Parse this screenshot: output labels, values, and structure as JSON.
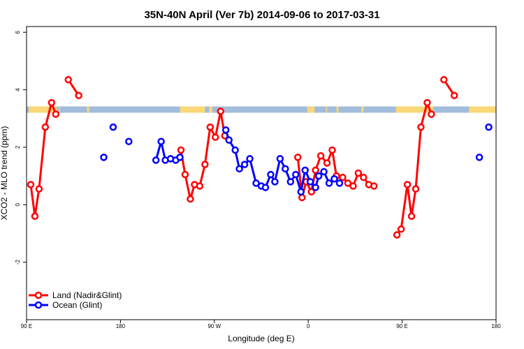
{
  "chart_data": {
    "type": "line",
    "title": "35N-40N April (Ver 7b)   2014-09-06 to 2017-03-31",
    "xlabel": "Longitude (deg E)",
    "ylabel": "XCO2 - MLO trend (ppm)",
    "xlim": [
      90,
      540
    ],
    "ylim": [
      -4,
      6.2
    ],
    "x_ticks": [
      {
        "value": 90,
        "label": "90 E"
      },
      {
        "value": 180,
        "label": "180"
      },
      {
        "value": 270,
        "label": "90 W"
      },
      {
        "value": 360,
        "label": "0"
      },
      {
        "value": 450,
        "label": "90 E"
      },
      {
        "value": 540,
        "label": "180"
      }
    ],
    "y_ticks": [
      {
        "value": -2,
        "label": "-2"
      },
      {
        "value": 0,
        "label": "0"
      },
      {
        "value": 2,
        "label": "2"
      },
      {
        "value": 4,
        "label": "4"
      },
      {
        "value": 6,
        "label": "6"
      }
    ],
    "land_sea_strip": {
      "y_range": [
        3.2,
        3.42
      ],
      "sea_color": "#a2bcdb",
      "land_color": "#fad878",
      "land_segments": [
        [
          92,
          119
        ],
        [
          121,
          122
        ],
        [
          148,
          150
        ],
        [
          237,
          261
        ],
        [
          265,
          268
        ],
        [
          359,
          362
        ],
        [
          362,
          366
        ],
        [
          377,
          378
        ],
        [
          387,
          389
        ],
        [
          411,
          413
        ],
        [
          444,
          480
        ],
        [
          514,
          540
        ]
      ]
    },
    "legend": {
      "position": "bottom-left",
      "items": [
        {
          "label": "Land (Nadir&Glint)",
          "color": "#ff0000"
        },
        {
          "label": "Ocean (Glint)",
          "color": "#0000ff"
        }
      ]
    },
    "series": [
      {
        "name": "Land (Nadir&Glint)",
        "color": "#ff0000",
        "segments": [
          [
            [
              94,
              0.7
            ],
            [
              98,
              -0.4
            ],
            [
              102,
              0.55
            ],
            [
              108,
              2.7
            ],
            [
              114,
              3.55
            ],
            [
              118,
              3.15
            ]
          ],
          [
            [
              130,
              4.35
            ],
            [
              140,
              3.8
            ]
          ],
          [
            [
              238,
              1.9
            ],
            [
              242,
              1.05
            ],
            [
              247,
              0.2
            ],
            [
              251,
              0.7
            ],
            [
              256,
              0.65
            ],
            [
              261,
              1.4
            ],
            [
              266,
              2.7
            ],
            [
              271,
              2.35
            ],
            [
              276,
              3.25
            ],
            [
              280,
              2.4
            ]
          ],
          [
            [
              350,
              1.65
            ],
            [
              354,
              0.25
            ],
            [
              358,
              0.8
            ],
            [
              363,
              0.45
            ],
            [
              367,
              1.2
            ],
            [
              372,
              1.7
            ],
            [
              378,
              1.45
            ],
            [
              383,
              1.9
            ],
            [
              387,
              1.0
            ],
            [
              393,
              0.95
            ],
            [
              398,
              0.75
            ],
            [
              403,
              0.65
            ],
            [
              408,
              1.1
            ],
            [
              413,
              0.95
            ],
            [
              418,
              0.7
            ],
            [
              423,
              0.65
            ]
          ],
          [
            [
              445,
              -1.05
            ],
            [
              449,
              -0.85
            ],
            [
              455,
              0.7
            ],
            [
              459,
              -0.4
            ],
            [
              463,
              0.55
            ],
            [
              468,
              2.7
            ],
            [
              474,
              3.55
            ],
            [
              478,
              3.15
            ]
          ],
          [
            [
              490,
              4.35
            ],
            [
              500,
              3.8
            ]
          ]
        ]
      },
      {
        "name": "Ocean (Glint)",
        "color": "#0000ff",
        "segments": [
          [
            [
              164,
              1.65
            ]
          ],
          [
            [
              173,
              2.7
            ]
          ],
          [
            [
              188,
              2.2
            ]
          ],
          [
            [
              214,
              1.55
            ],
            [
              219,
              2.2
            ],
            [
              223,
              1.55
            ],
            [
              228,
              1.6
            ],
            [
              233,
              1.55
            ],
            [
              237,
              1.65
            ]
          ],
          [
            [
              281,
              2.6
            ],
            [
              284,
              2.25
            ],
            [
              290,
              1.9
            ],
            [
              294,
              1.25
            ],
            [
              299,
              1.4
            ],
            [
              304,
              1.6
            ],
            [
              310,
              0.75
            ],
            [
              315,
              0.65
            ],
            [
              319,
              0.6
            ],
            [
              324,
              1.05
            ],
            [
              328,
              0.8
            ],
            [
              333,
              1.6
            ],
            [
              338,
              1.25
            ],
            [
              343,
              0.8
            ],
            [
              348,
              1.05
            ],
            [
              353,
              0.45
            ],
            [
              357,
              1.2
            ],
            [
              362,
              0.8
            ],
            [
              367,
              0.6
            ],
            [
              370,
              1.0
            ],
            [
              375,
              1.15
            ],
            [
              380,
              0.75
            ],
            [
              385,
              0.9
            ],
            [
              390,
              0.75
            ]
          ],
          [
            [
              524,
              1.65
            ]
          ],
          [
            [
              533,
              2.7
            ]
          ]
        ]
      }
    ]
  }
}
